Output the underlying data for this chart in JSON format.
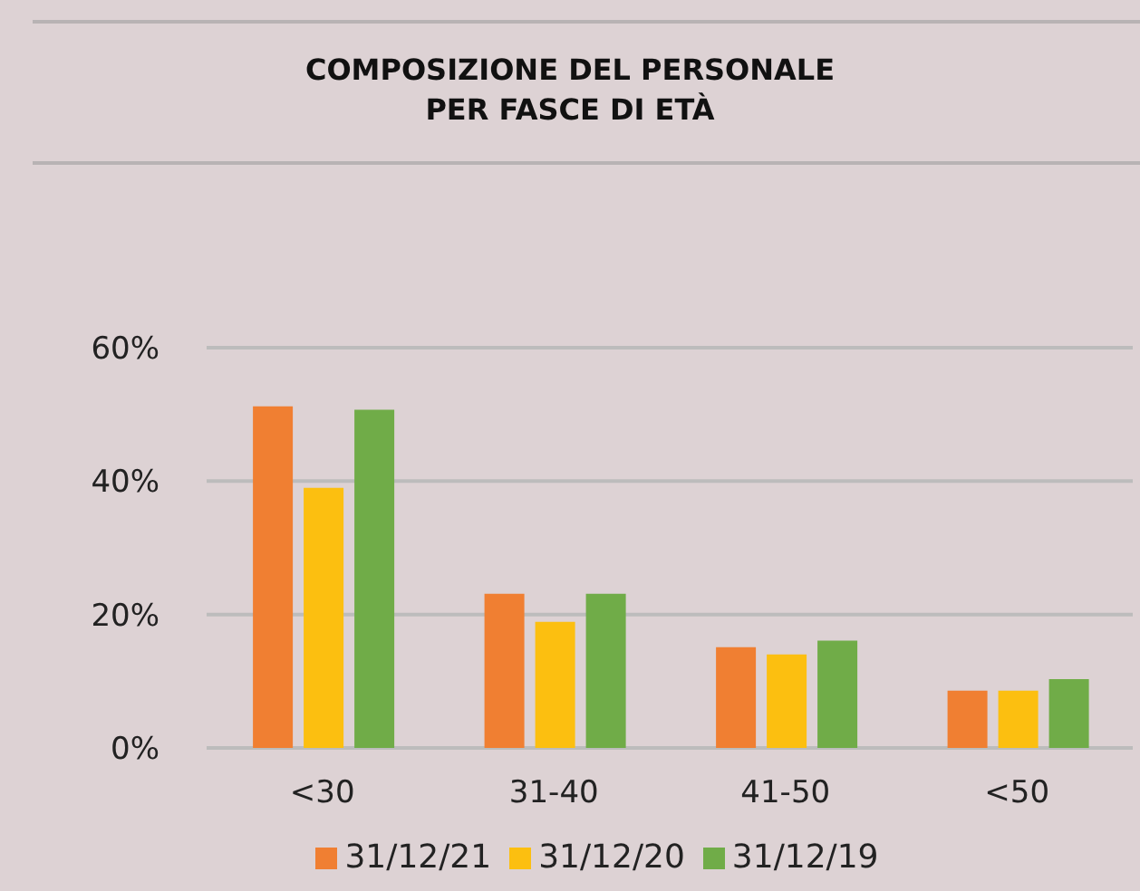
{
  "chart_data": {
    "type": "bar",
    "title": "COMPOSIZIONE DEL PERSONALE\nPER FASCE DI ETÀ",
    "categories": [
      "<30",
      "31-40",
      "41-50",
      "<50"
    ],
    "series": [
      {
        "name": "31/12/21",
        "color": "#f07f32",
        "values": [
          51.2,
          23.1,
          15.1,
          8.6
        ]
      },
      {
        "name": "31/12/20",
        "color": "#fcbf10",
        "values": [
          39,
          18.9,
          14,
          8.6
        ]
      },
      {
        "name": "31/12/19",
        "color": "#70ac48",
        "values": [
          50.7,
          23.1,
          16.1,
          10.3
        ]
      }
    ],
    "ylim": [
      0,
      60
    ],
    "yticks": [
      {
        "value": 0,
        "label": "0%"
      },
      {
        "value": 20,
        "label": "20%"
      },
      {
        "value": 40,
        "label": "40%"
      },
      {
        "value": 60,
        "label": "60%"
      }
    ],
    "grid": "y",
    "legend": "bottom"
  }
}
